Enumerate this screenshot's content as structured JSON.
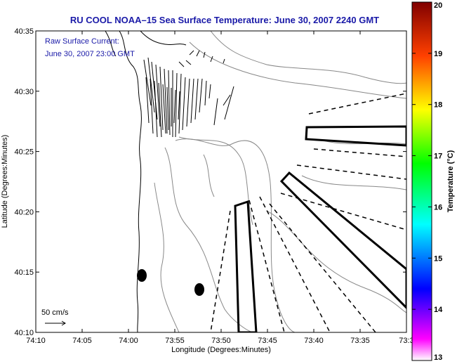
{
  "title": "RU COOL  NOAA–15  Sea Surface Temperature:  June 30, 2007 2240 GMT",
  "annotation": {
    "line1": "Raw Surface Current:",
    "line2": "June 30, 2007 23:00 GMT"
  },
  "scale_label": "50 cm/s",
  "x_axis": {
    "label": "Longitude (Degrees:Minutes)",
    "ticks": [
      "74:10",
      "74:05",
      "74:00",
      "73:55",
      "73:50",
      "73:45",
      "73:40",
      "73:35",
      "73:3"
    ]
  },
  "y_axis": {
    "label": "Latitude (Degrees:Minutes)",
    "ticks": [
      "40:35",
      "40:30",
      "40:25",
      "40:20",
      "40:15",
      "40:10"
    ]
  },
  "colorbar": {
    "label": "Temperature (°C)",
    "ticks": [
      "20",
      "19",
      "18",
      "17",
      "16",
      "15",
      "14",
      "13"
    ],
    "min": 13,
    "max": 20,
    "colors": [
      "#ff00ff",
      "#0000ff",
      "#00ffff",
      "#00ff00",
      "#ffff00",
      "#ff8000",
      "#ff0000",
      "#800000"
    ]
  }
}
